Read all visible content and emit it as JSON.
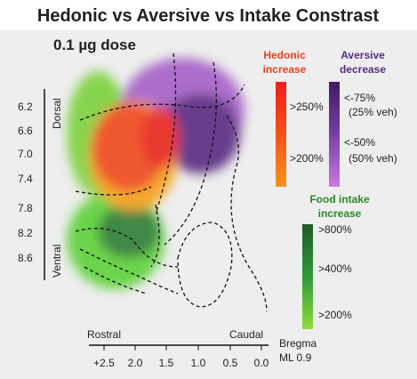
{
  "title": "Hedonic vs Aversive vs Intake Constrast",
  "dose": "0.1 µg dose",
  "dv_axis": {
    "labels": [
      "6.2",
      "6.6",
      "7.0",
      "7.4",
      "7.8",
      "8.2",
      "8.6"
    ],
    "top": "Dorsal",
    "bottom": "Ventral"
  },
  "rc_axis": {
    "labels": [
      "+2.5",
      "2.0",
      "1.5",
      "1.0",
      "0.5",
      "0.0"
    ],
    "left": "Rostral",
    "right": "Caudal"
  },
  "bregma": [
    "Bregma",
    "ML 0.9"
  ],
  "legends": {
    "hedonic": {
      "title": [
        "Hedonic",
        "increase"
      ],
      "labels": [
        ">250%",
        ">200%"
      ]
    },
    "aversive": {
      "title": [
        "Aversive",
        "decrease"
      ],
      "labels": [
        "<-75%",
        "(25% veh)",
        "<-50%",
        "(50% veh)"
      ]
    },
    "food": {
      "title": [
        "Food intake",
        "increase"
      ],
      "labels": [
        ">800%",
        ">400%",
        ">200%"
      ]
    }
  }
}
